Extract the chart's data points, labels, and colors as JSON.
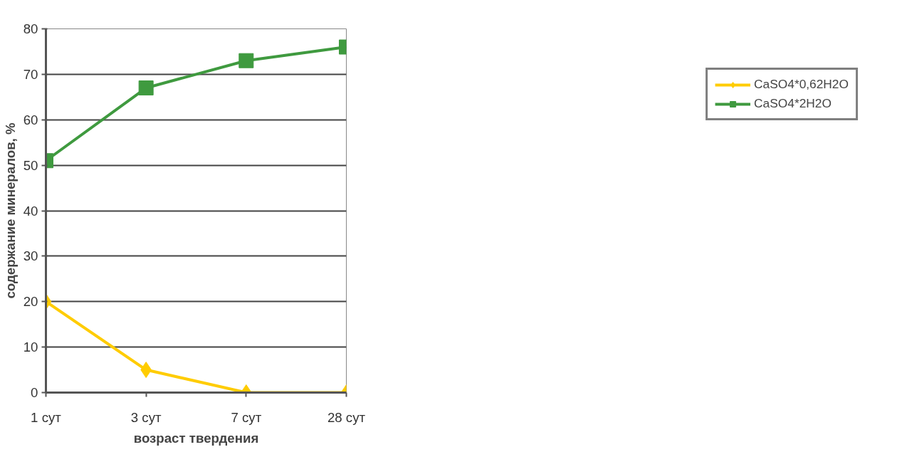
{
  "chart_data": {
    "type": "line",
    "xlabel": "возраст твердения",
    "ylabel": "содержание минералов, %",
    "categories": [
      "1 сут",
      "3 сут",
      "7 сут",
      "28 сут"
    ],
    "series": [
      {
        "name": "CaSO4*0,62H2O",
        "color": "#ffcc00",
        "marker": "diamond",
        "values": [
          20,
          5,
          0,
          0
        ]
      },
      {
        "name": "CaSO4*2H2O",
        "color": "#3f9a3f",
        "marker": "square",
        "values": [
          51,
          67,
          73,
          76
        ]
      }
    ],
    "ylim": [
      0,
      80
    ],
    "yticks": [
      0,
      10,
      20,
      30,
      40,
      50,
      60,
      70,
      80
    ],
    "grid": "y",
    "legend": "right",
    "line_style": "solid"
  }
}
